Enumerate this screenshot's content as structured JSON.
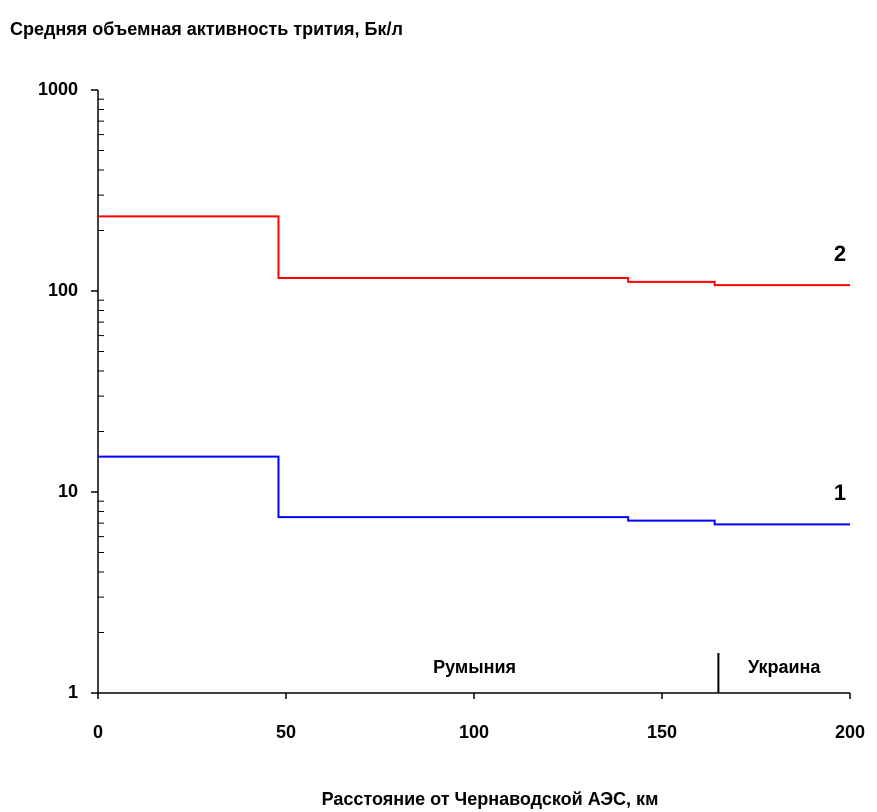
{
  "chart_data": {
    "type": "line",
    "step": true,
    "log_y": true,
    "title": "Средняя объемная активность трития, Бк/л",
    "x_label": "Расстояние от Чернаводской АЭС, км",
    "x": [
      0,
      48,
      48,
      141,
      141,
      164,
      164,
      200
    ],
    "series": [
      {
        "name": "1",
        "color": "#0000ff",
        "values": [
          15,
          15,
          7.5,
          7.5,
          7.2,
          7.2,
          6.9,
          6.9
        ]
      },
      {
        "name": "2",
        "color": "#ff0000",
        "values": [
          235,
          235,
          116,
          116,
          111,
          111,
          107,
          107
        ]
      }
    ],
    "xlim": [
      0,
      200
    ],
    "xticks": [
      0,
      50,
      100,
      150,
      200
    ],
    "ylim": [
      1,
      1000
    ],
    "yticks": [
      1,
      10,
      100,
      1000
    ],
    "regions": [
      "Румыния",
      "Украина"
    ],
    "border": 165
  }
}
